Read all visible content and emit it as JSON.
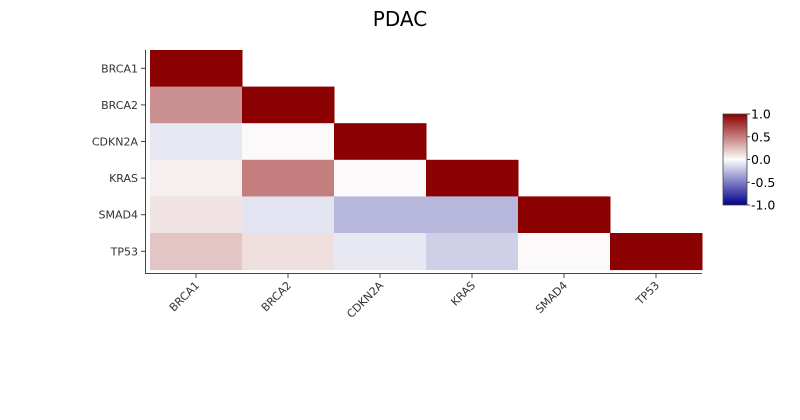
{
  "chart_data": {
    "type": "heatmap",
    "title": "PDAC",
    "xlabel": "",
    "ylabel": "",
    "x_categories": [
      "BRCA1",
      "BRCA2",
      "CDKN2A",
      "KRAS",
      "SMAD4",
      "TP53"
    ],
    "y_categories": [
      "BRCA1",
      "BRCA2",
      "CDKN2A",
      "KRAS",
      "SMAD4",
      "TP53"
    ],
    "matrix_shape": "lower-triangle",
    "values": [
      [
        1.0,
        null,
        null,
        null,
        null,
        null
      ],
      [
        0.43,
        1.0,
        null,
        null,
        null,
        null
      ],
      [
        -0.08,
        0.01,
        1.0,
        null,
        null,
        null
      ],
      [
        0.05,
        0.5,
        0.01,
        1.0,
        null,
        null
      ],
      [
        0.1,
        -0.1,
        -0.27,
        -0.27,
        1.0,
        null
      ],
      [
        0.22,
        0.12,
        -0.08,
        -0.18,
        0.01,
        1.0
      ]
    ],
    "colorscale": {
      "min": -1.0,
      "max": 1.0,
      "colors": {
        "low": "#00008b",
        "mid": "#fcfcfc",
        "high": "#8b0000"
      },
      "ticks": [
        "1.0",
        "0.5",
        "0.0",
        "-0.5",
        "-1.0"
      ],
      "tick_values": [
        1.0,
        0.5,
        0.0,
        -0.5,
        -1.0
      ],
      "placement": "right"
    },
    "grid": false
  }
}
